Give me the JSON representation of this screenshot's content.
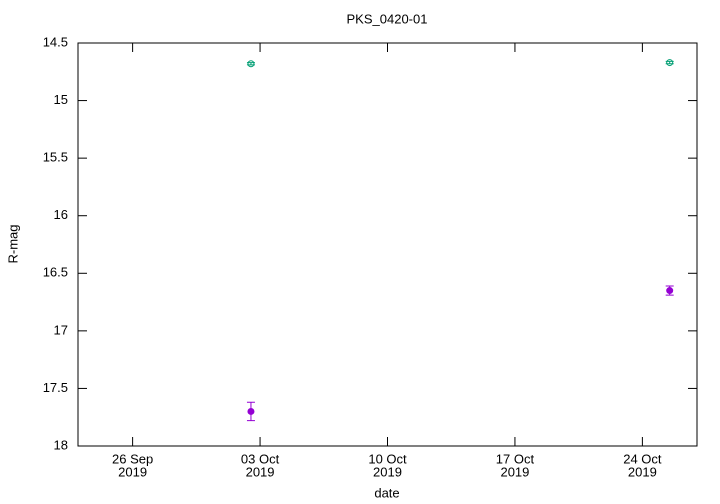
{
  "chart_data": {
    "type": "scatter",
    "title": "PKS_0420-01",
    "x_label": "date",
    "y_label": "R-mag",
    "xlim": [
      "2019-09-23",
      "2019-10-27"
    ],
    "xticks": [
      {
        "value": "2019-09-26",
        "label": [
          "26 Sep",
          "2019"
        ]
      },
      {
        "value": "2019-10-03",
        "label": [
          "03 Oct",
          "2019"
        ]
      },
      {
        "value": "2019-10-10",
        "label": [
          "10 Oct",
          "2019"
        ]
      },
      {
        "value": "2019-10-17",
        "label": [
          "17 Oct",
          "2019"
        ]
      },
      {
        "value": "2019-10-24",
        "label": [
          "24 Oct",
          "2019"
        ]
      }
    ],
    "ylim": [
      14.5,
      18
    ],
    "y_inverted": true,
    "yticks": [
      14.5,
      15,
      15.5,
      16,
      16.5,
      17,
      17.5,
      18
    ],
    "series": [
      {
        "color": "#009e73",
        "marker": "open",
        "x": [
          "2019-10-02",
          "2019-10-25"
        ],
        "values": [
          14.68,
          14.67
        ],
        "errors": [
          0.01,
          0.01
        ]
      },
      {
        "color": "#9400d3",
        "marker": "filled",
        "x": [
          "2019-10-02",
          "2019-10-25"
        ],
        "values": [
          17.7,
          16.65
        ],
        "errors": [
          0.08,
          0.04
        ]
      }
    ]
  }
}
